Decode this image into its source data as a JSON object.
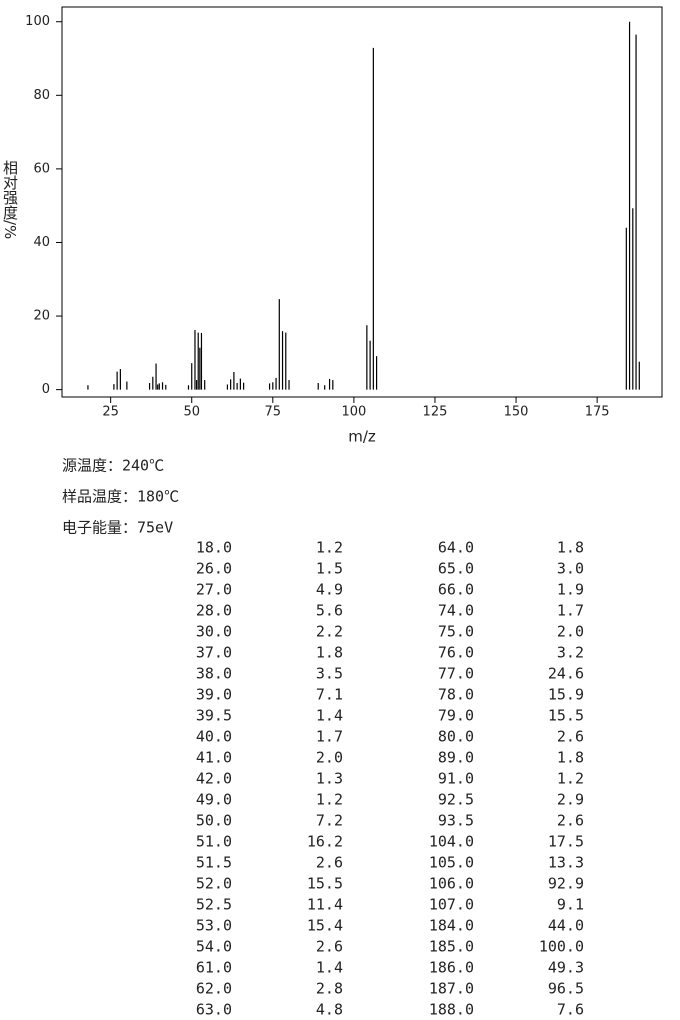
{
  "chart_data": {
    "type": "stick",
    "x_label": "m/z",
    "y_label": "相对强度/%",
    "x": [
      18,
      26,
      27,
      28,
      30,
      37,
      38,
      39,
      39.5,
      40,
      41,
      42,
      49,
      50,
      51,
      51.5,
      52,
      52.5,
      53,
      54,
      61,
      62,
      63,
      64,
      65,
      66,
      74,
      75,
      76,
      77,
      78,
      79,
      80,
      89,
      91,
      92.5,
      93.5,
      104,
      105,
      106,
      107,
      184,
      185,
      186,
      187,
      188
    ],
    "x_labels": [
      "18.0",
      "26.0",
      "27.0",
      "28.0",
      "30.0",
      "37.0",
      "38.0",
      "39.0",
      "39.5",
      "40.0",
      "41.0",
      "42.0",
      "49.0",
      "50.0",
      "51.0",
      "51.5",
      "52.0",
      "52.5",
      "53.0",
      "54.0",
      "61.0",
      "62.0",
      "63.0",
      "64.0",
      "65.0",
      "66.0",
      "74.0",
      "75.0",
      "76.0",
      "77.0",
      "78.0",
      "79.0",
      "80.0",
      "89.0",
      "91.0",
      "92.5",
      "93.5",
      "104.0",
      "105.0",
      "106.0",
      "107.0",
      "184.0",
      "185.0",
      "186.0",
      "187.0",
      "188.0"
    ],
    "values": [
      1.2,
      1.5,
      4.9,
      5.6,
      2.2,
      1.8,
      3.5,
      7.1,
      1.4,
      1.7,
      2.0,
      1.3,
      1.2,
      7.2,
      16.2,
      2.6,
      15.5,
      11.4,
      15.4,
      2.6,
      1.4,
      2.8,
      4.8,
      1.8,
      3.0,
      1.9,
      1.7,
      2.0,
      3.2,
      24.6,
      15.9,
      15.5,
      2.6,
      1.8,
      1.2,
      2.9,
      2.6,
      17.5,
      13.3,
      92.9,
      9.1,
      44.0,
      100.0,
      49.3,
      96.5,
      7.6
    ],
    "value_labels": [
      "1.2",
      "1.5",
      "4.9",
      "5.6",
      "2.2",
      "1.8",
      "3.5",
      "7.1",
      "1.4",
      "1.7",
      "2.0",
      "1.3",
      "1.2",
      "7.2",
      "16.2",
      "2.6",
      "15.5",
      "11.4",
      "15.4",
      "2.6",
      "1.4",
      "2.8",
      "4.8",
      "1.8",
      "3.0",
      "1.9",
      "1.7",
      "2.0",
      "3.2",
      "24.6",
      "15.9",
      "15.5",
      "2.6",
      "1.8",
      "1.2",
      "2.9",
      "2.6",
      "17.5",
      "13.3",
      "92.9",
      "9.1",
      "44.0",
      "100.0",
      "49.3",
      "96.5",
      "7.6"
    ],
    "color": "#000000",
    "xlim": [
      10,
      195
    ],
    "xticks": [
      25,
      50,
      75,
      100,
      125,
      150,
      175
    ],
    "ylim": [
      -2,
      104
    ],
    "yticks": [
      0,
      20,
      40,
      60,
      80,
      100
    ],
    "grid": false
  },
  "info": [
    "源温度：240℃",
    "样品温度：180℃",
    "电子能量：75eV"
  ]
}
